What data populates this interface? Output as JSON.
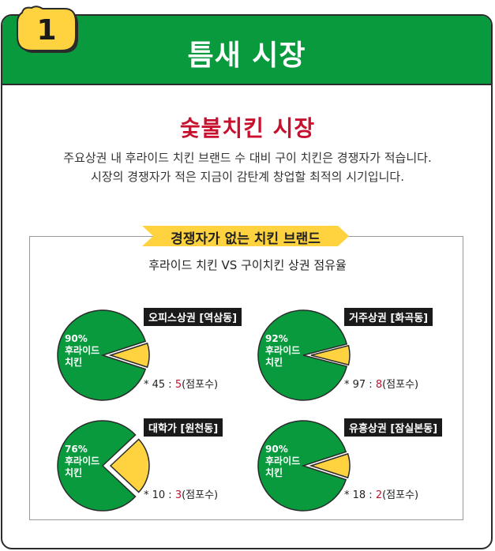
{
  "badge": {
    "number": "1"
  },
  "header": {
    "title": "틈새 시장"
  },
  "main": {
    "title": "숯불치킨 시장",
    "desc_line1": "주요상권 내 후라이드 치킨 브랜드 수 대비 구이 치킨은 경쟁자가 적습니다.",
    "desc_line2": "시장의 경쟁자가 적은 지금이  감탄계 창업할 최적의 시기입니다."
  },
  "section": {
    "ribbon": "경쟁자가 없는 치킨 브랜드",
    "subtitle": "후라이드 치킨 VS 구이치킨 상권 점유율"
  },
  "colors": {
    "green": "#0a9a3e",
    "yellow": "#ffd23f",
    "red": "#c8102e"
  },
  "chart_data": [
    {
      "type": "pie",
      "area": "오피스상권 [역삼동]",
      "categories": [
        "후라이드 치킨",
        "구이치킨"
      ],
      "values": [
        90,
        10
      ],
      "pct_label": "90%",
      "cat_label_1": "후라이드",
      "cat_label_2": "치킨",
      "counts_prefix": "* 45 : ",
      "counts_fried": "45",
      "counts_grill": "5",
      "counts_suffix": "(점포수)"
    },
    {
      "type": "pie",
      "area": "거주상권 [화곡동]",
      "categories": [
        "후라이드 치킨",
        "구이치킨"
      ],
      "values": [
        92,
        8
      ],
      "pct_label": "92%",
      "cat_label_1": "후라이드",
      "cat_label_2": "치킨",
      "counts_prefix": "* 97 : ",
      "counts_fried": "97",
      "counts_grill": "8",
      "counts_suffix": "(점포수)"
    },
    {
      "type": "pie",
      "area": "대학가 [원천동]",
      "categories": [
        "후라이드 치킨",
        "구이치킨"
      ],
      "values": [
        76,
        24
      ],
      "pct_label": "76%",
      "cat_label_1": "후라이드",
      "cat_label_2": "치킨",
      "counts_prefix": "* 10 : ",
      "counts_fried": "10",
      "counts_grill": "3",
      "counts_suffix": "(점포수)"
    },
    {
      "type": "pie",
      "area": "유흥상권 [잠실본동]",
      "categories": [
        "후라이드 치킨",
        "구이치킨"
      ],
      "values": [
        90,
        10
      ],
      "pct_label": "90%",
      "cat_label_1": "후라이드",
      "cat_label_2": "치킨",
      "counts_prefix": "* 18 : ",
      "counts_fried": "18",
      "counts_grill": "2",
      "counts_suffix": "(점포수)"
    }
  ]
}
